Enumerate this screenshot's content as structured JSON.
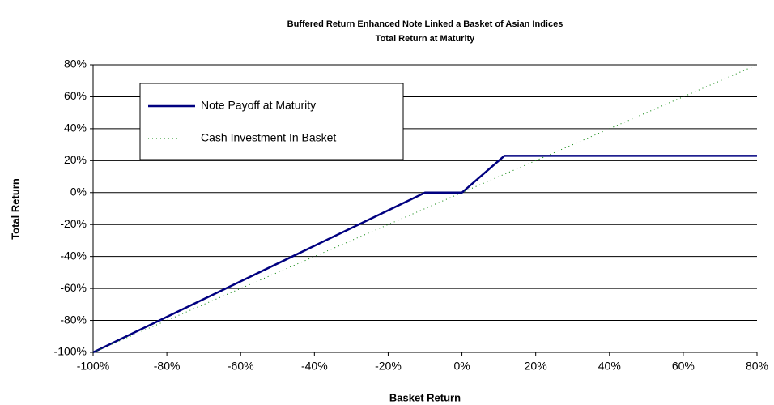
{
  "chart_data": {
    "type": "line",
    "title": "Buffered Return Enhanced Note Linked a Basket of Asian Indices",
    "subtitle": "Total Return at Maturity",
    "x_label": "Basket Return",
    "y_label": "Total Return",
    "xlim": [
      -100,
      80
    ],
    "ylim": [
      -100,
      80
    ],
    "xticks": [
      {
        "value": -100,
        "label": "-100%"
      },
      {
        "value": -80,
        "label": "-80%"
      },
      {
        "value": -60,
        "label": "-60%"
      },
      {
        "value": -40,
        "label": "-40%"
      },
      {
        "value": -20,
        "label": "-20%"
      },
      {
        "value": 0,
        "label": "0%"
      },
      {
        "value": 20,
        "label": "20%"
      },
      {
        "value": 40,
        "label": "40%"
      },
      {
        "value": 60,
        "label": "60%"
      },
      {
        "value": 80,
        "label": "80%"
      }
    ],
    "yticks": [
      {
        "value": -100,
        "label": "-100%"
      },
      {
        "value": -80,
        "label": "-80%"
      },
      {
        "value": -60,
        "label": "-60%"
      },
      {
        "value": -40,
        "label": "-40%"
      },
      {
        "value": -20,
        "label": "-20%"
      },
      {
        "value": 0,
        "label": "0%"
      },
      {
        "value": 20,
        "label": "20%"
      },
      {
        "value": 40,
        "label": "40%"
      },
      {
        "value": 60,
        "label": "60%"
      },
      {
        "value": 80,
        "label": "80%"
      }
    ],
    "grid": true,
    "legend": "upper left",
    "series": [
      {
        "name": "Note Payoff at Maturity",
        "color": "#000080",
        "style": "solid",
        "x": [
          -100,
          -10,
          0,
          11.5,
          80
        ],
        "values": [
          -100,
          0,
          0,
          23,
          23
        ]
      },
      {
        "name": "Cash Investment In Basket",
        "color": "#008000",
        "style": "dotted",
        "x": [
          -100,
          80
        ],
        "values": [
          -100,
          80
        ]
      }
    ]
  }
}
